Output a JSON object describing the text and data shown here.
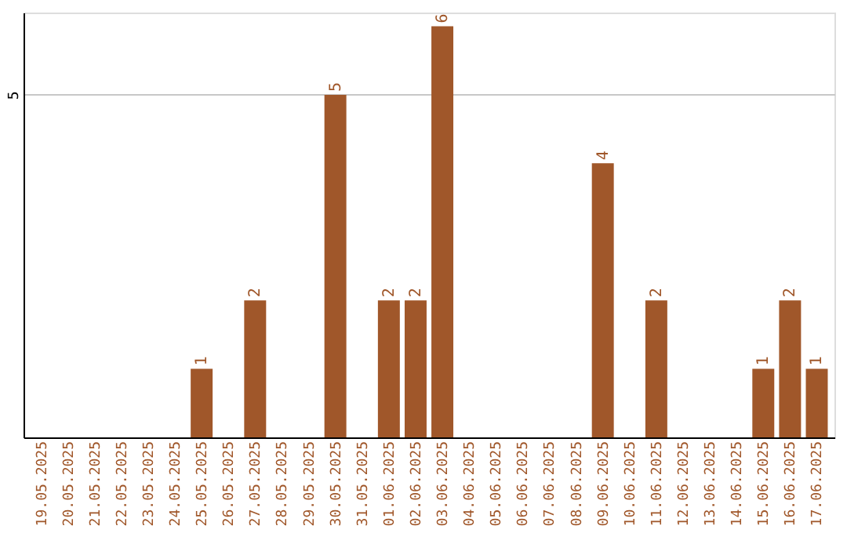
{
  "chart_data": {
    "type": "bar",
    "categories": [
      "19.05.2025",
      "20.05.2025",
      "21.05.2025",
      "22.05.2025",
      "23.05.2025",
      "24.05.2025",
      "25.05.2025",
      "26.05.2025",
      "27.05.2025",
      "28.05.2025",
      "29.05.2025",
      "30.05.2025",
      "31.05.2025",
      "01.06.2025",
      "02.06.2025",
      "03.06.2025",
      "04.06.2025",
      "05.06.2025",
      "06.06.2025",
      "07.06.2025",
      "08.06.2025",
      "09.06.2025",
      "10.06.2025",
      "11.06.2025",
      "12.06.2025",
      "13.06.2025",
      "14.06.2025",
      "15.06.2025",
      "16.06.2025",
      "17.06.2025"
    ],
    "values": [
      0,
      0,
      0,
      0,
      0,
      0,
      1,
      0,
      2,
      0,
      0,
      5,
      0,
      2,
      2,
      6,
      0,
      0,
      0,
      0,
      0,
      4,
      0,
      2,
      0,
      0,
      0,
      1,
      2,
      1
    ],
    "value_labels": [
      null,
      null,
      null,
      null,
      null,
      null,
      "1",
      null,
      "2",
      null,
      null,
      "5",
      null,
      "2",
      "2",
      "6",
      null,
      null,
      null,
      null,
      null,
      "4",
      null,
      "2",
      null,
      null,
      null,
      "1",
      "2",
      "1"
    ],
    "color": "#a0572a",
    "ylim": [
      0,
      6.2
    ],
    "yticks": [
      5
    ],
    "grid": "y"
  }
}
